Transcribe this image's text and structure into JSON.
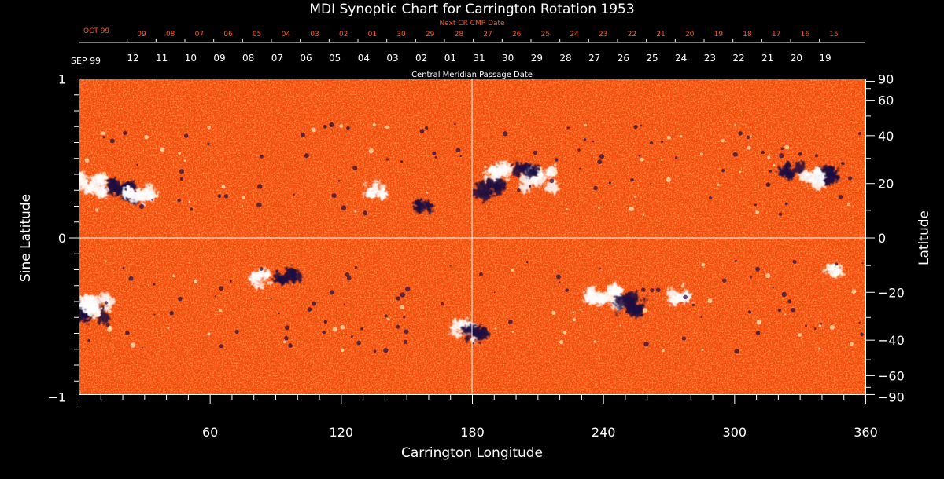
{
  "chart_data": {
    "type": "heatmap",
    "title": "MDI Synoptic Chart for Carrington Rotation 1953",
    "xlabel": "Carrington Longitude",
    "ylabel_left": "Sine Latitude",
    "ylabel_right": "Latitude",
    "xlim": [
      0,
      360
    ],
    "ylim": [
      -1,
      1
    ],
    "x_ticks": [
      60,
      120,
      180,
      240,
      300,
      360
    ],
    "y_ticks_left": [
      {
        "value": 1,
        "label": "1"
      },
      {
        "value": 0,
        "label": "0"
      },
      {
        "value": -1,
        "label": "−1"
      }
    ],
    "y_ticks_right": [
      {
        "lat": 90,
        "label": "90"
      },
      {
        "lat": 60,
        "label": "60"
      },
      {
        "lat": 40,
        "label": "40"
      },
      {
        "lat": 20,
        "label": "20"
      },
      {
        "lat": 0,
        "label": "0"
      },
      {
        "lat": -20,
        "label": "−20"
      },
      {
        "lat": -40,
        "label": "−40"
      },
      {
        "lat": -60,
        "label": "−60"
      },
      {
        "lat": -90,
        "label": "−90"
      }
    ],
    "top_axis": {
      "caption": "Central Meridian Passage Date",
      "month_label": "SEP 99",
      "dates": [
        "12",
        "11",
        "10",
        "09",
        "08",
        "07",
        "06",
        "05",
        "04",
        "03",
        "02",
        "01",
        "31",
        "30",
        "29",
        "28",
        "27",
        "26",
        "25",
        "24",
        "23",
        "22",
        "21",
        "20",
        "19"
      ]
    },
    "next_cr_axis": {
      "caption": "Next CR CMP Date",
      "month_label": "OCT 99",
      "dates": [
        "09",
        "08",
        "07",
        "06",
        "05",
        "04",
        "03",
        "02",
        "01",
        "30",
        "29",
        "28",
        "27",
        "26",
        "25",
        "24",
        "23",
        "22",
        "21",
        "20",
        "19",
        "18",
        "17",
        "16",
        "15"
      ]
    },
    "colors": {
      "background_field": "#ff5a10",
      "positive_polarity": "#ffffff",
      "negative_polarity": "#1a1040",
      "next_cr_text": "#ff5a2a",
      "axis": "#ffffff"
    },
    "features": [
      {
        "polarity": "positive",
        "lon": 5,
        "lat": 20,
        "strength": 1.0
      },
      {
        "polarity": "negative",
        "lon": 22,
        "lat": 17,
        "strength": 1.0
      },
      {
        "polarity": "positive",
        "lon": 28,
        "lat": 16,
        "strength": 0.9
      },
      {
        "polarity": "negative",
        "lon": 5,
        "lat": -28,
        "strength": 1.0
      },
      {
        "polarity": "positive",
        "lon": 8,
        "lat": -25,
        "strength": 0.9
      },
      {
        "polarity": "positive",
        "lon": 83,
        "lat": -15,
        "strength": 0.8
      },
      {
        "polarity": "negative",
        "lon": 95,
        "lat": -14,
        "strength": 0.7
      },
      {
        "polarity": "positive",
        "lon": 135,
        "lat": 18,
        "strength": 0.7
      },
      {
        "polarity": "negative",
        "lon": 157,
        "lat": 12,
        "strength": 0.6
      },
      {
        "polarity": "positive",
        "lon": 176,
        "lat": -36,
        "strength": 0.8
      },
      {
        "polarity": "negative",
        "lon": 181,
        "lat": -37,
        "strength": 0.7
      },
      {
        "polarity": "positive",
        "lon": 190,
        "lat": 24,
        "strength": 0.9
      },
      {
        "polarity": "negative",
        "lon": 188,
        "lat": 18,
        "strength": 0.8
      },
      {
        "polarity": "positive",
        "lon": 210,
        "lat": 22,
        "strength": 1.0
      },
      {
        "polarity": "negative",
        "lon": 205,
        "lat": 25,
        "strength": 0.7
      },
      {
        "polarity": "positive",
        "lon": 240,
        "lat": -22,
        "strength": 1.0
      },
      {
        "polarity": "negative",
        "lon": 252,
        "lat": -25,
        "strength": 1.0
      },
      {
        "polarity": "positive",
        "lon": 275,
        "lat": -22,
        "strength": 0.6
      },
      {
        "polarity": "negative",
        "lon": 340,
        "lat": 23,
        "strength": 0.8
      },
      {
        "polarity": "positive",
        "lon": 335,
        "lat": 22,
        "strength": 0.8
      },
      {
        "polarity": "negative",
        "lon": 325,
        "lat": 25,
        "strength": 0.7
      },
      {
        "polarity": "positive",
        "lon": 345,
        "lat": -12,
        "strength": 0.5
      }
    ]
  }
}
